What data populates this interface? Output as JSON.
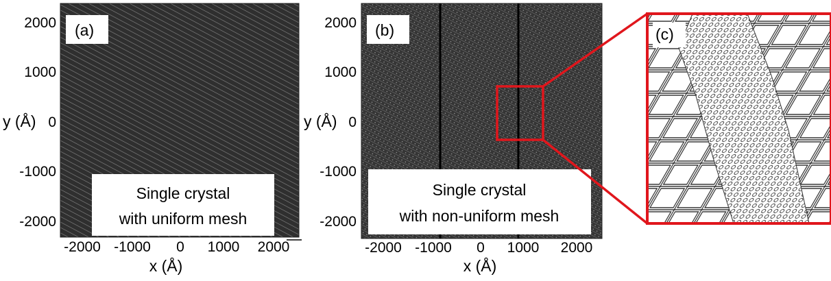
{
  "panels": {
    "a": {
      "label": "(a)",
      "caption_line1": "Single crystal",
      "caption_line2": "with uniform mesh",
      "xlabel": "x (Å)",
      "ylabel": "y (Å)",
      "y_ticks": [
        "2000",
        "1000",
        "0",
        "-1000",
        "-2000"
      ],
      "x_ticks": [
        "-2000",
        "-1000",
        "0",
        "1000",
        "2000"
      ]
    },
    "b": {
      "label": "(b)",
      "caption_line1": "Single crystal",
      "caption_line2": "with non-uniform mesh",
      "xlabel": "x (Å)",
      "ylabel": "y (Å)",
      "y_ticks": [
        "2000",
        "1000",
        "0",
        "-1000",
        "-2000"
      ],
      "x_ticks": [
        "-2000",
        "-1000",
        "0",
        "1000",
        "2000"
      ]
    },
    "c": {
      "label": "(c)"
    }
  },
  "colors": {
    "mesh_dark": "#2f2f2f",
    "zoom_red": "#e0161c",
    "background": "#ffffff"
  }
}
